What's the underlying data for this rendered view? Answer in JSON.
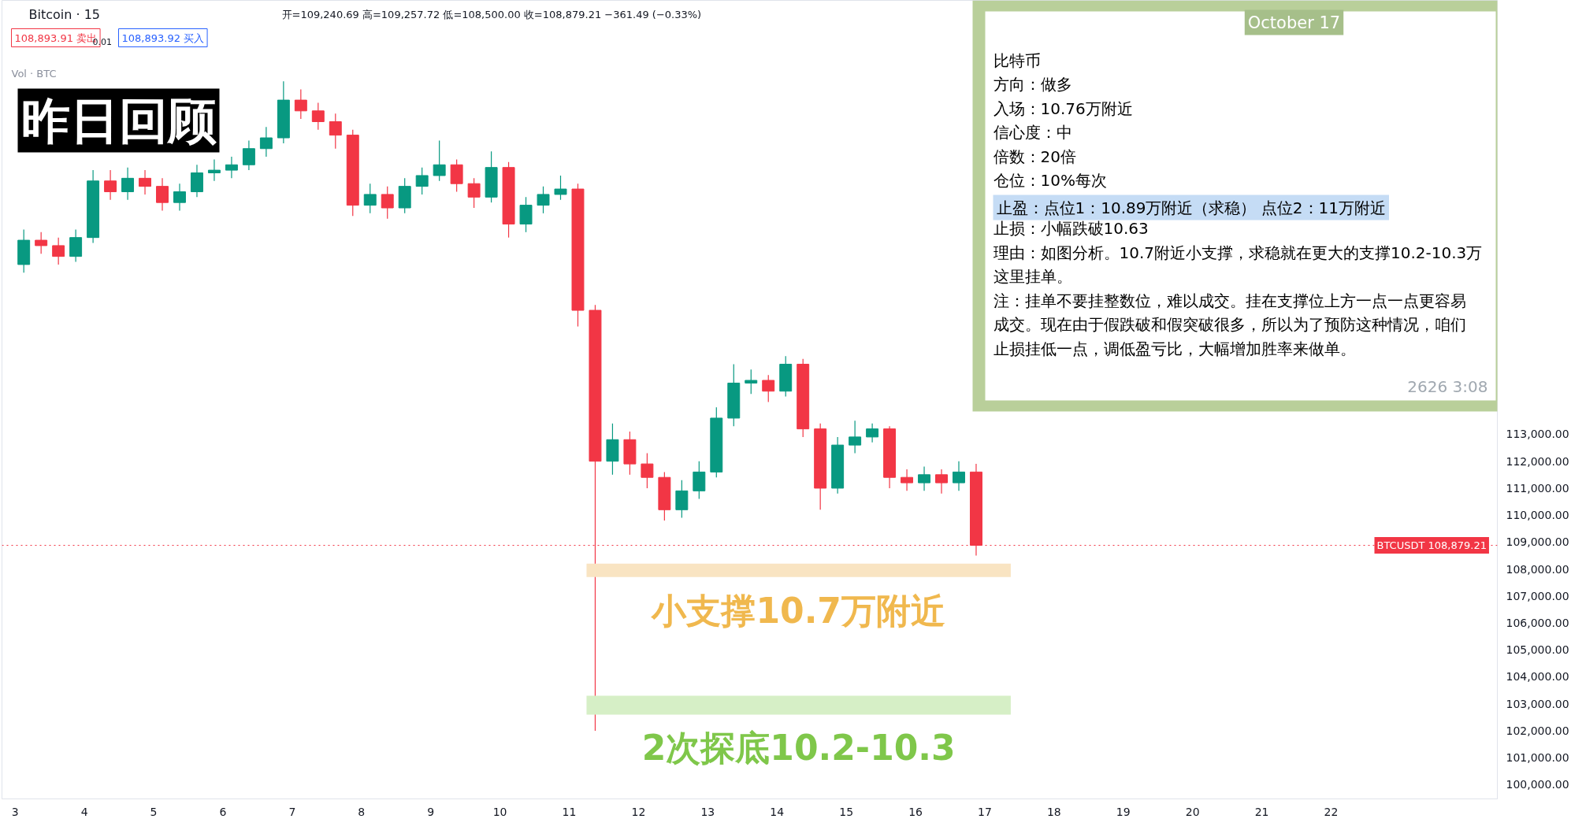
{
  "chart_data": {
    "type": "candlestick",
    "title": "昨日回顾",
    "subtitle": "Bitcoin · 15",
    "x": [
      3.125,
      3.375,
      3.625,
      3.875,
      4.125,
      4.375,
      4.625,
      4.875,
      5.125,
      5.375,
      5.625,
      5.875,
      6.125,
      6.375,
      6.625,
      6.875,
      7.125,
      7.375,
      7.625,
      7.875,
      8.125,
      8.375,
      8.625,
      8.875,
      9.125,
      9.375,
      9.625,
      9.875,
      10.125,
      10.375,
      10.625,
      10.875,
      11.125,
      11.375,
      11.625,
      11.875,
      12.125,
      12.375,
      12.625,
      12.875,
      13.125,
      13.375,
      13.625,
      13.875,
      14.125,
      14.375,
      14.625,
      14.875,
      15.125,
      15.375,
      15.625,
      15.875,
      16.125,
      16.375,
      16.625,
      16.875
    ],
    "ohlc": [
      [
        119300,
        120600,
        119000,
        120200
      ],
      [
        120200,
        120500,
        119700,
        120000
      ],
      [
        120000,
        120300,
        119300,
        119600
      ],
      [
        119600,
        120600,
        119400,
        120300
      ],
      [
        120300,
        122800,
        120100,
        122400
      ],
      [
        122400,
        122800,
        121700,
        122000
      ],
      [
        122000,
        122900,
        121700,
        122500
      ],
      [
        122500,
        122800,
        121900,
        122200
      ],
      [
        122200,
        122500,
        121300,
        121600
      ],
      [
        121600,
        122300,
        121300,
        122000
      ],
      [
        122000,
        123000,
        121800,
        122700
      ],
      [
        122700,
        123200,
        122400,
        122800
      ],
      [
        122800,
        123300,
        122500,
        123000
      ],
      [
        123000,
        123900,
        122800,
        123600
      ],
      [
        123600,
        124400,
        123300,
        124000
      ],
      [
        124000,
        126100,
        123800,
        125400
      ],
      [
        125400,
        125800,
        124700,
        125000
      ],
      [
        125000,
        125300,
        124300,
        124600
      ],
      [
        124600,
        124900,
        123600,
        124100
      ],
      [
        124100,
        124300,
        121100,
        121500
      ],
      [
        121500,
        122300,
        121200,
        121900
      ],
      [
        121900,
        122200,
        121000,
        121400
      ],
      [
        121400,
        122500,
        121200,
        122200
      ],
      [
        122200,
        122900,
        121900,
        122600
      ],
      [
        122600,
        123900,
        122400,
        123000
      ],
      [
        123000,
        123200,
        122000,
        122300
      ],
      [
        122300,
        122500,
        121400,
        121800
      ],
      [
        121800,
        123500,
        121600,
        122900
      ],
      [
        122900,
        123100,
        120300,
        120800
      ],
      [
        120800,
        121800,
        120500,
        121500
      ],
      [
        121500,
        122200,
        121200,
        121900
      ],
      [
        121900,
        122600,
        121700,
        122100
      ],
      [
        122100,
        122300,
        117000,
        117600
      ],
      [
        117600,
        117800,
        102000,
        112000
      ],
      [
        112000,
        113400,
        111500,
        112800
      ],
      [
        112800,
        113100,
        111500,
        111900
      ],
      [
        111900,
        112300,
        111000,
        111400
      ],
      [
        111400,
        111600,
        109800,
        110200
      ],
      [
        110200,
        111300,
        109900,
        110900
      ],
      [
        110900,
        112000,
        110600,
        111600
      ],
      [
        111600,
        114000,
        111400,
        113600
      ],
      [
        113600,
        115600,
        113300,
        114900
      ],
      [
        114900,
        115400,
        114500,
        115000
      ],
      [
        115000,
        115200,
        114200,
        114600
      ],
      [
        114600,
        115900,
        114400,
        115600
      ],
      [
        115600,
        115800,
        112900,
        113200
      ],
      [
        113200,
        113400,
        110200,
        111000
      ],
      [
        111000,
        112900,
        110800,
        112600
      ],
      [
        112600,
        113500,
        112300,
        112900
      ],
      [
        112900,
        113400,
        112700,
        113200
      ],
      [
        113200,
        113300,
        111000,
        111400
      ],
      [
        111400,
        111700,
        110900,
        111200
      ],
      [
        111200,
        111800,
        110900,
        111500
      ],
      [
        111500,
        111700,
        110800,
        111200
      ],
      [
        111200,
        112000,
        110900,
        111600
      ],
      [
        111600,
        111900,
        108500,
        108879.21
      ]
    ],
    "colors": [
      "#089981",
      "#f23645",
      "#f23645",
      "#089981",
      "#089981",
      "#f23645",
      "#089981",
      "#f23645",
      "#f23645",
      "#089981",
      "#089981",
      "#089981",
      "#089981",
      "#089981",
      "#089981",
      "#089981",
      "#f23645",
      "#f23645",
      "#f23645",
      "#f23645",
      "#089981",
      "#f23645",
      "#089981",
      "#089981",
      "#089981",
      "#f23645",
      "#f23645",
      "#089981",
      "#f23645",
      "#089981",
      "#089981",
      "#089981",
      "#f23645",
      "#f23645",
      "#089981",
      "#f23645",
      "#f23645",
      "#f23645",
      "#089981",
      "#089981",
      "#089981",
      "#089981",
      "#089981",
      "#f23645",
      "#089981",
      "#f23645",
      "#f23645",
      "#089981",
      "#089981",
      "#089981",
      "#f23645",
      "#f23645",
      "#089981",
      "#f23645",
      "#089981",
      "#f23645"
    ],
    "xlim": [
      2.81,
      24.4
    ],
    "xticks": [
      3,
      4,
      5,
      6,
      7,
      8,
      9,
      10,
      11,
      12,
      13,
      14,
      15,
      16,
      17,
      18,
      19,
      20,
      21,
      22
    ],
    "ylim": [
      99470,
      129100
    ],
    "yticks": [
      {
        "value": 100000,
        "label": "100,000.00"
      },
      {
        "value": 101000,
        "label": "101,000.00"
      },
      {
        "value": 102000,
        "label": "102,000.00"
      },
      {
        "value": 103000,
        "label": "103,000.00"
      },
      {
        "value": 104000,
        "label": "104,000.00"
      },
      {
        "value": 105000,
        "label": "105,000.00"
      },
      {
        "value": 106000,
        "label": "106,000.00"
      },
      {
        "value": 107000,
        "label": "107,000.00"
      },
      {
        "value": 108000,
        "label": "108,000.00"
      },
      {
        "value": 109000,
        "label": "109,000.00"
      },
      {
        "value": 110000,
        "label": "110,000.00"
      },
      {
        "value": 111000,
        "label": "111,000.00"
      },
      {
        "value": 112000,
        "label": "112,000.00"
      },
      {
        "value": 113000,
        "label": "113,000.00"
      }
    ],
    "ref_lines": [
      {
        "axis": "y",
        "value": 108879.21,
        "label": "BTCUSDT 108,879.21",
        "color": "#f23645",
        "line_style": "dotted"
      }
    ],
    "bands": [
      {
        "axis": "y",
        "from": 107700,
        "to": 108200,
        "label": "小支撑10.7万附近",
        "color": "#f9e4c2"
      },
      {
        "axis": "y",
        "from": 102600,
        "to": 103300,
        "label": "2次探底10.2-10.3",
        "color": "#d6efc6"
      }
    ],
    "annotations": [
      "开=109,240.69 高=109,257.72 低=108,500.00 收=108,879.21 −361.49 (−0.33%)",
      "108,893.91 卖出",
      "0.01",
      "108,893.92 买入",
      "Vol · BTC",
      "October 17",
      "比特币",
      "方向：做多",
      "入场：10.76万附近",
      "信心度：中",
      "倍数：20倍",
      "仓位：10%每次",
      "止盈：点位1：10.89万附近（求稳） 点位2：11万附近",
      "止损：小幅跌破10.63",
      "理由：如图分析。10.7附近小支撑，求稳就在更大的支撑10.2-10.3万",
      "这里挂单。",
      "注：挂单不要挂整数位，难以成交。挂在支撑位上方一点一点更容易",
      "成交。现在由于假跌破和假突破很多，所以为了预防这种情况，咱们",
      "止损挂低一点，调低盈亏比，大幅增加胜率来做单。",
      "2626 3:08"
    ]
  }
}
